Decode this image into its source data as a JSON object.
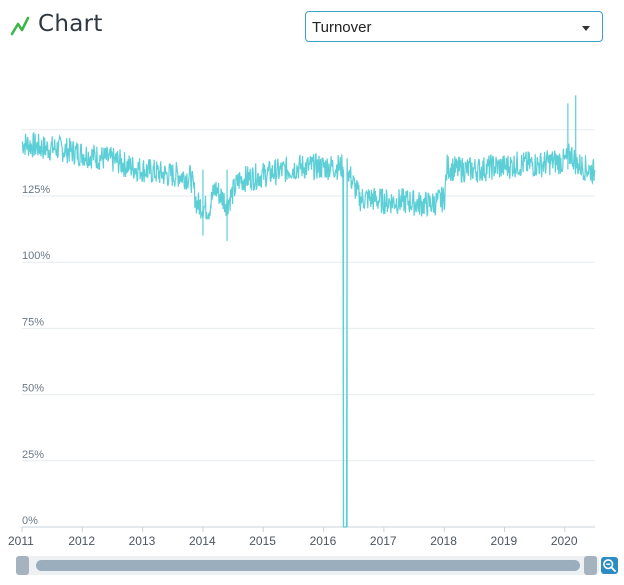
{
  "header": {
    "title": "Chart",
    "icon": "line-chart-icon"
  },
  "metric_select": {
    "value": "Turnover"
  },
  "chart_data": {
    "type": "line",
    "xlabel": "",
    "ylabel": "",
    "x_ticks": [
      "2011",
      "2012",
      "2013",
      "2014",
      "2015",
      "2016",
      "2017",
      "2018",
      "2019",
      "2020"
    ],
    "y_ticks": [
      "0%",
      "25%",
      "50%",
      "75%",
      "100%",
      "125%"
    ],
    "xlim": [
      2011.0,
      2020.5
    ],
    "ylim": [
      0,
      150
    ],
    "grid": true,
    "line_color": "#5ccfd6",
    "series_points_approx": [
      [
        2011.0,
        145
      ],
      [
        2011.2,
        144
      ],
      [
        2011.4,
        143
      ],
      [
        2011.6,
        143
      ],
      [
        2011.8,
        142
      ],
      [
        2012.0,
        141
      ],
      [
        2012.2,
        140
      ],
      [
        2012.4,
        139
      ],
      [
        2012.6,
        138
      ],
      [
        2012.8,
        136
      ],
      [
        2013.0,
        135
      ],
      [
        2013.2,
        134
      ],
      [
        2013.4,
        133
      ],
      [
        2013.6,
        133
      ],
      [
        2013.8,
        132
      ],
      [
        2013.9,
        122
      ],
      [
        2014.0,
        121
      ],
      [
        2014.1,
        120
      ],
      [
        2014.2,
        128
      ],
      [
        2014.4,
        122
      ],
      [
        2014.6,
        131
      ],
      [
        2014.8,
        132
      ],
      [
        2015.0,
        133
      ],
      [
        2015.2,
        134
      ],
      [
        2015.4,
        135
      ],
      [
        2015.6,
        136
      ],
      [
        2015.8,
        136
      ],
      [
        2016.0,
        136
      ],
      [
        2016.2,
        136
      ],
      [
        2016.32,
        136
      ],
      [
        2016.33,
        0
      ],
      [
        2016.38,
        0
      ],
      [
        2016.39,
        136
      ],
      [
        2016.45,
        132
      ],
      [
        2016.6,
        124
      ],
      [
        2016.8,
        124
      ],
      [
        2017.0,
        123
      ],
      [
        2017.2,
        123
      ],
      [
        2017.4,
        123
      ],
      [
        2017.6,
        122
      ],
      [
        2017.8,
        122
      ],
      [
        2018.0,
        124
      ],
      [
        2018.05,
        136
      ],
      [
        2018.2,
        135
      ],
      [
        2018.4,
        135
      ],
      [
        2018.6,
        135
      ],
      [
        2018.8,
        136
      ],
      [
        2019.0,
        136
      ],
      [
        2019.2,
        137
      ],
      [
        2019.4,
        137
      ],
      [
        2019.6,
        137
      ],
      [
        2019.8,
        138
      ],
      [
        2020.0,
        138
      ],
      [
        2020.1,
        141
      ],
      [
        2020.2,
        137
      ],
      [
        2020.3,
        136
      ],
      [
        2020.5,
        134
      ]
    ],
    "spikes_approx": [
      {
        "x": 2016.33,
        "y": 0
      },
      {
        "x": 2016.39,
        "y": 0
      },
      {
        "x": 2014.0,
        "y": 110
      },
      {
        "x": 2014.4,
        "y": 108
      },
      {
        "x": 2020.05,
        "y": 160
      },
      {
        "x": 2020.18,
        "y": 163
      }
    ]
  },
  "scrollbar": {
    "zoom_icon": "zoom-out-icon"
  }
}
